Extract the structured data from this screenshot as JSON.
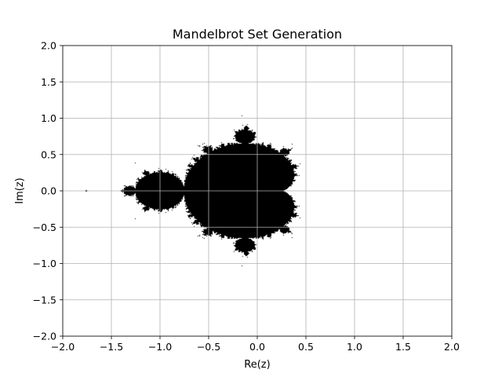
{
  "chart_data": {
    "type": "heatmap",
    "title": "Mandelbrot Set Generation",
    "xlabel": "Re(z)",
    "ylabel": "Im(z)",
    "xlim": [
      -2.0,
      2.0
    ],
    "ylim": [
      -2.0,
      2.0
    ],
    "x_ticks": [
      -2.0,
      -1.5,
      -1.0,
      -0.5,
      0.0,
      0.5,
      1.0,
      1.5,
      2.0
    ],
    "y_ticks": [
      -2.0,
      -1.5,
      -1.0,
      -0.5,
      0.0,
      0.5,
      1.0,
      1.5,
      2.0
    ],
    "x_tick_labels": [
      "−2.0",
      "−1.5",
      "−1.0",
      "−0.5",
      "0.0",
      "0.5",
      "1.0",
      "1.5",
      "2.0"
    ],
    "y_tick_labels": [
      "−2.0",
      "−1.5",
      "−1.0",
      "−0.5",
      "0.0",
      "0.5",
      "1.0",
      "1.5",
      "2.0"
    ],
    "grid": true,
    "colors": {
      "inside_set": "#000000",
      "outside_set": "#ffffff",
      "grid": "#b0b0b0",
      "axes": "#000000"
    },
    "max_iterations": 50
  }
}
